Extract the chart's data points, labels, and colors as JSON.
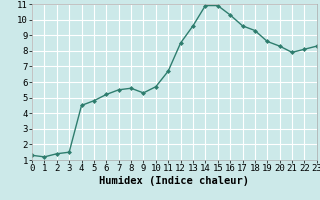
{
  "x": [
    0,
    1,
    2,
    3,
    4,
    5,
    6,
    7,
    8,
    9,
    10,
    11,
    12,
    13,
    14,
    15,
    16,
    17,
    18,
    19,
    20,
    21,
    22,
    23
  ],
  "y": [
    1.3,
    1.2,
    1.4,
    1.5,
    4.5,
    4.8,
    5.2,
    5.5,
    5.6,
    5.3,
    5.7,
    6.7,
    8.5,
    9.6,
    10.9,
    10.9,
    10.3,
    9.6,
    9.3,
    8.6,
    8.3,
    7.9,
    8.1,
    8.3
  ],
  "line_color": "#2e7d6e",
  "marker": "D",
  "marker_size": 2.0,
  "bg_color": "#cce9e9",
  "plot_bg_color": "#cce9e9",
  "grid_color": "#ffffff",
  "border_color": "#aaaaaa",
  "xlabel": "Humidex (Indice chaleur)",
  "xlim": [
    0,
    23
  ],
  "ylim": [
    1,
    11
  ],
  "xticks": [
    0,
    1,
    2,
    3,
    4,
    5,
    6,
    7,
    8,
    9,
    10,
    11,
    12,
    13,
    14,
    15,
    16,
    17,
    18,
    19,
    20,
    21,
    22,
    23
  ],
  "yticks": [
    1,
    2,
    3,
    4,
    5,
    6,
    7,
    8,
    9,
    10,
    11
  ],
  "xlabel_fontsize": 7.5,
  "tick_fontsize": 6.5,
  "line_width": 1.0
}
